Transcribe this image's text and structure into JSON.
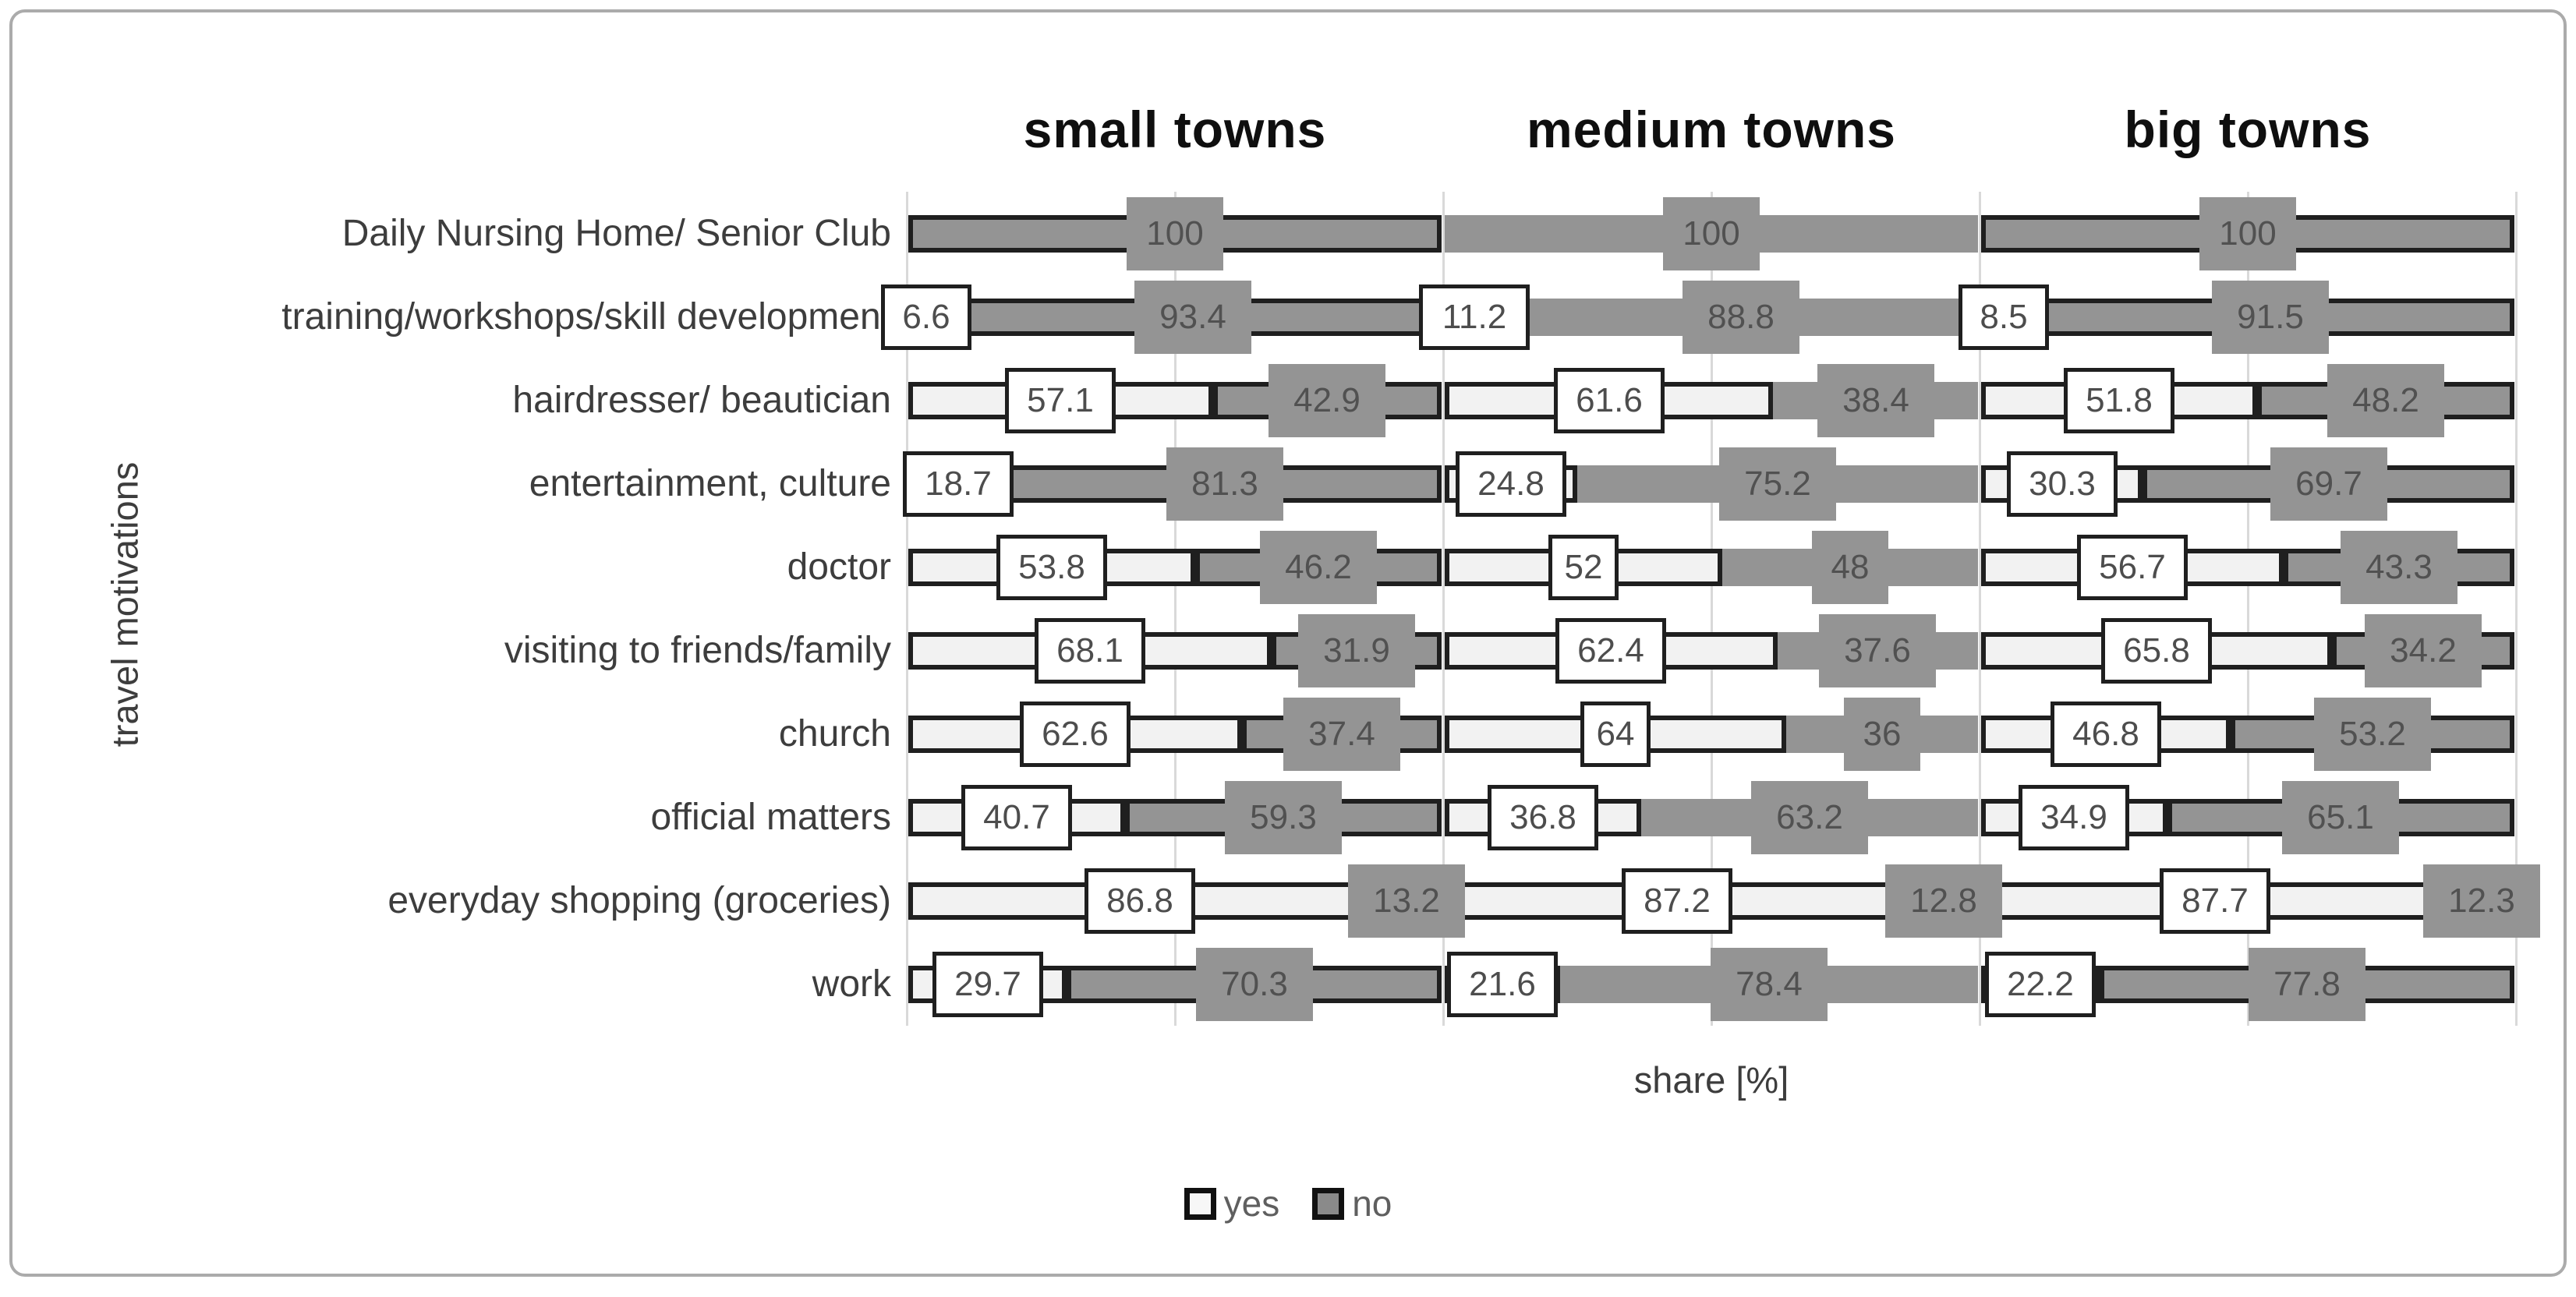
{
  "chart_data": {
    "type": "bar",
    "orientation": "horizontal",
    "stacked_percent": true,
    "panels": [
      "small towns",
      "medium towns",
      "big towns"
    ],
    "series_names": [
      "yes",
      "no"
    ],
    "legend": [
      "yes",
      "no"
    ],
    "categories": [
      "Daily Nursing Home/ Senior Club",
      "training/workshops/skill development",
      "hairdresser/ beautician",
      "entertainment, culture",
      "doctor",
      "visiting to friends/family",
      "church",
      "official matters",
      "everyday shopping (groceries)",
      "work"
    ],
    "values": {
      "small towns": {
        "yes": [
          0,
          6.6,
          57.1,
          18.7,
          53.8,
          68.1,
          62.6,
          40.7,
          86.8,
          29.7
        ],
        "no": [
          100,
          93.4,
          42.9,
          81.3,
          46.2,
          31.9,
          37.4,
          59.3,
          13.2,
          70.3
        ]
      },
      "medium towns": {
        "yes": [
          0,
          11.2,
          61.6,
          24.8,
          52,
          62.4,
          64,
          36.8,
          87.2,
          21.6
        ],
        "no": [
          100,
          88.8,
          38.4,
          75.2,
          48,
          37.6,
          36,
          63.2,
          12.8,
          78.4
        ]
      },
      "big towns": {
        "yes": [
          0,
          8.5,
          51.8,
          30.3,
          56.7,
          65.8,
          46.8,
          34.9,
          87.7,
          22.2
        ],
        "no": [
          100,
          91.5,
          48.2,
          69.7,
          43.3,
          34.2,
          53.2,
          65.1,
          12.3,
          77.8
        ]
      }
    },
    "xlabel": "share [%]",
    "ylabel": "travel motivations",
    "x_range_per_panel": [
      0,
      100
    ],
    "gridlines_at_percent": [
      0,
      50,
      100
    ],
    "legend_position": "bottom",
    "colors": {
      "yes_fill": "#f2f2f2",
      "no_fill": "#949494",
      "bar_border": "#1f1f1f",
      "gridline": "#d9d9d9",
      "axis_text": "#3d3d3d",
      "title_text": "#0f0f0f",
      "yes_label_text": "#4d4d4d",
      "no_label_text": "#515151",
      "frame_border": "#ababab"
    }
  }
}
